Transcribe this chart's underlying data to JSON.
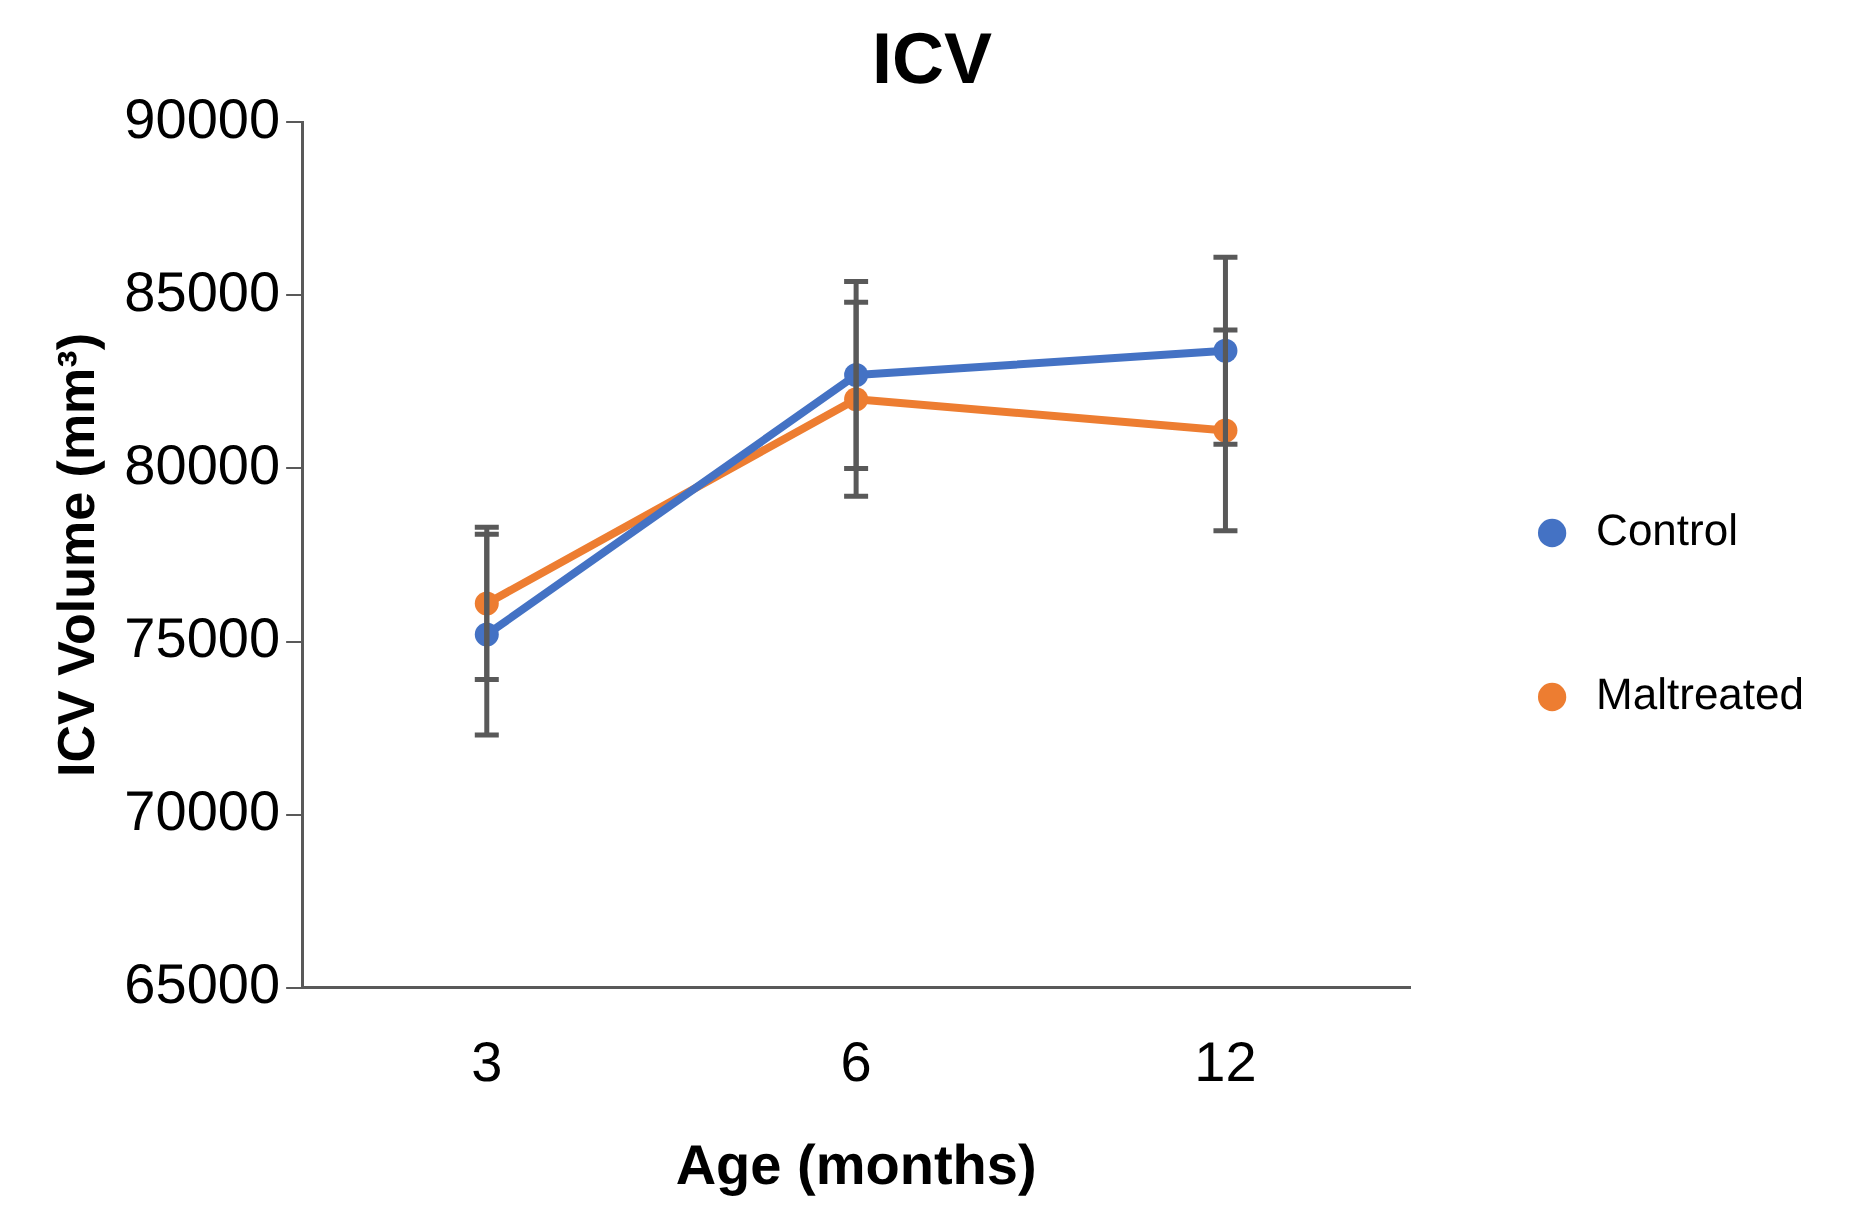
{
  "chart_data": {
    "type": "line",
    "title": "ICV",
    "xlabel": "Age (months)",
    "ylabel": "ICV Volume (mm³)",
    "categories": [
      "3",
      "6",
      "12"
    ],
    "series": [
      {
        "name": "Control",
        "color": "#4472c4",
        "values": [
          75200,
          82700,
          83400
        ],
        "errors": [
          2900,
          2700,
          2700
        ]
      },
      {
        "name": "Maltreated",
        "color": "#ed7d31",
        "values": [
          76100,
          82000,
          81100
        ],
        "errors": [
          2200,
          2800,
          2900
        ]
      }
    ],
    "ylim": [
      65000,
      90000
    ],
    "yticks": [
      65000,
      70000,
      75000,
      80000,
      85000,
      90000
    ],
    "grid": false,
    "legend": "right",
    "marker": "circle",
    "line_style": "solid"
  }
}
